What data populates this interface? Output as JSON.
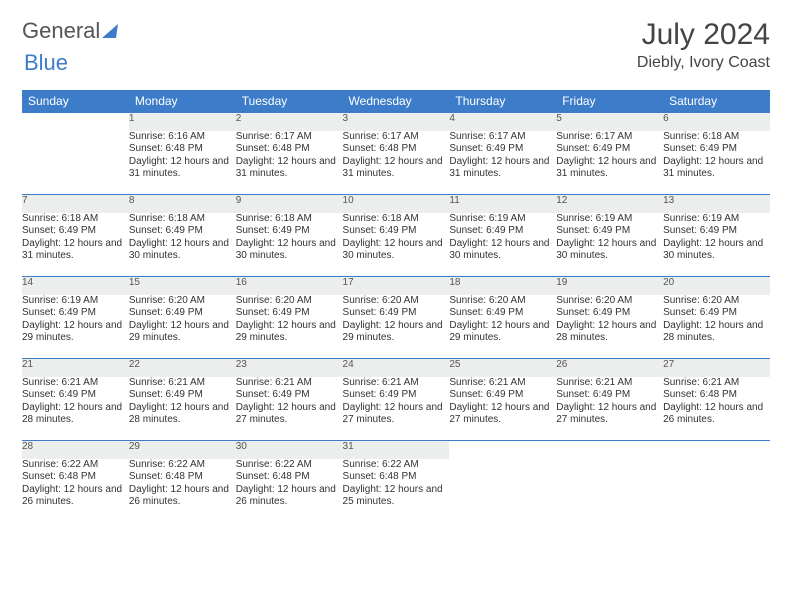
{
  "logo": {
    "part1": "General",
    "part2": "Blue"
  },
  "title": {
    "month": "July 2024",
    "location": "Diebly, Ivory Coast"
  },
  "colors": {
    "header_bg": "#3d7cc9",
    "header_text": "#ffffff",
    "daynum_bg": "#eceded",
    "border": "#3d7cc9",
    "text": "#333333"
  },
  "day_headers": [
    "Sunday",
    "Monday",
    "Tuesday",
    "Wednesday",
    "Thursday",
    "Friday",
    "Saturday"
  ],
  "weeks": [
    [
      null,
      {
        "n": "1",
        "sr": "6:16 AM",
        "ss": "6:48 PM",
        "dl": "12 hours and 31 minutes."
      },
      {
        "n": "2",
        "sr": "6:17 AM",
        "ss": "6:48 PM",
        "dl": "12 hours and 31 minutes."
      },
      {
        "n": "3",
        "sr": "6:17 AM",
        "ss": "6:48 PM",
        "dl": "12 hours and 31 minutes."
      },
      {
        "n": "4",
        "sr": "6:17 AM",
        "ss": "6:49 PM",
        "dl": "12 hours and 31 minutes."
      },
      {
        "n": "5",
        "sr": "6:17 AM",
        "ss": "6:49 PM",
        "dl": "12 hours and 31 minutes."
      },
      {
        "n": "6",
        "sr": "6:18 AM",
        "ss": "6:49 PM",
        "dl": "12 hours and 31 minutes."
      }
    ],
    [
      {
        "n": "7",
        "sr": "6:18 AM",
        "ss": "6:49 PM",
        "dl": "12 hours and 31 minutes."
      },
      {
        "n": "8",
        "sr": "6:18 AM",
        "ss": "6:49 PM",
        "dl": "12 hours and 30 minutes."
      },
      {
        "n": "9",
        "sr": "6:18 AM",
        "ss": "6:49 PM",
        "dl": "12 hours and 30 minutes."
      },
      {
        "n": "10",
        "sr": "6:18 AM",
        "ss": "6:49 PM",
        "dl": "12 hours and 30 minutes."
      },
      {
        "n": "11",
        "sr": "6:19 AM",
        "ss": "6:49 PM",
        "dl": "12 hours and 30 minutes."
      },
      {
        "n": "12",
        "sr": "6:19 AM",
        "ss": "6:49 PM",
        "dl": "12 hours and 30 minutes."
      },
      {
        "n": "13",
        "sr": "6:19 AM",
        "ss": "6:49 PM",
        "dl": "12 hours and 30 minutes."
      }
    ],
    [
      {
        "n": "14",
        "sr": "6:19 AM",
        "ss": "6:49 PM",
        "dl": "12 hours and 29 minutes."
      },
      {
        "n": "15",
        "sr": "6:20 AM",
        "ss": "6:49 PM",
        "dl": "12 hours and 29 minutes."
      },
      {
        "n": "16",
        "sr": "6:20 AM",
        "ss": "6:49 PM",
        "dl": "12 hours and 29 minutes."
      },
      {
        "n": "17",
        "sr": "6:20 AM",
        "ss": "6:49 PM",
        "dl": "12 hours and 29 minutes."
      },
      {
        "n": "18",
        "sr": "6:20 AM",
        "ss": "6:49 PM",
        "dl": "12 hours and 29 minutes."
      },
      {
        "n": "19",
        "sr": "6:20 AM",
        "ss": "6:49 PM",
        "dl": "12 hours and 28 minutes."
      },
      {
        "n": "20",
        "sr": "6:20 AM",
        "ss": "6:49 PM",
        "dl": "12 hours and 28 minutes."
      }
    ],
    [
      {
        "n": "21",
        "sr": "6:21 AM",
        "ss": "6:49 PM",
        "dl": "12 hours and 28 minutes."
      },
      {
        "n": "22",
        "sr": "6:21 AM",
        "ss": "6:49 PM",
        "dl": "12 hours and 28 minutes."
      },
      {
        "n": "23",
        "sr": "6:21 AM",
        "ss": "6:49 PM",
        "dl": "12 hours and 27 minutes."
      },
      {
        "n": "24",
        "sr": "6:21 AM",
        "ss": "6:49 PM",
        "dl": "12 hours and 27 minutes."
      },
      {
        "n": "25",
        "sr": "6:21 AM",
        "ss": "6:49 PM",
        "dl": "12 hours and 27 minutes."
      },
      {
        "n": "26",
        "sr": "6:21 AM",
        "ss": "6:49 PM",
        "dl": "12 hours and 27 minutes."
      },
      {
        "n": "27",
        "sr": "6:21 AM",
        "ss": "6:48 PM",
        "dl": "12 hours and 26 minutes."
      }
    ],
    [
      {
        "n": "28",
        "sr": "6:22 AM",
        "ss": "6:48 PM",
        "dl": "12 hours and 26 minutes."
      },
      {
        "n": "29",
        "sr": "6:22 AM",
        "ss": "6:48 PM",
        "dl": "12 hours and 26 minutes."
      },
      {
        "n": "30",
        "sr": "6:22 AM",
        "ss": "6:48 PM",
        "dl": "12 hours and 26 minutes."
      },
      {
        "n": "31",
        "sr": "6:22 AM",
        "ss": "6:48 PM",
        "dl": "12 hours and 25 minutes."
      },
      null,
      null,
      null
    ]
  ],
  "labels": {
    "sunrise": "Sunrise:",
    "sunset": "Sunset:",
    "daylight": "Daylight:"
  }
}
